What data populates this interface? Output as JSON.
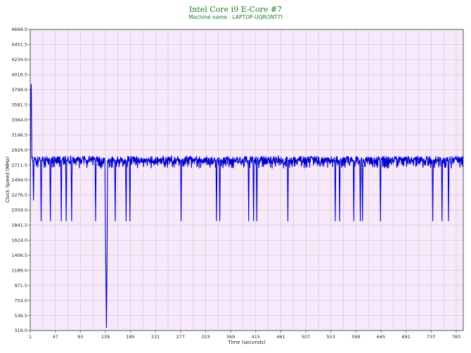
{
  "chart_data": {
    "type": "line",
    "title": "Intel Core i9 E-Core #7",
    "subtitle": "Machine name : LAPTOP-UQRONT7I",
    "xlabel": "Time (seconds)",
    "ylabel": "Clock Speed (MHz)",
    "xlim": [
      1,
      796
    ],
    "ylim": [
      319.0,
      4669.0
    ],
    "y_ticks": [
      "4669.0",
      "4451.5",
      "4234.0",
      "4016.5",
      "3799.0",
      "3581.5",
      "3364.0",
      "3146.5",
      "2929.0",
      "2711.5",
      "2494.0",
      "2276.5",
      "2059.0",
      "1841.5",
      "1624.0",
      "1406.5",
      "1189.0",
      "971.5",
      "754.0",
      "536.5",
      "319.0"
    ],
    "x_ticks": [
      "1",
      "47",
      "93",
      "139",
      "185",
      "231",
      "277",
      "323",
      "369",
      "415",
      "461",
      "507",
      "553",
      "599",
      "645",
      "691",
      "737",
      "783"
    ],
    "grid": true,
    "background": "#f7e8fb",
    "grid_color": "#c9c9c9",
    "series": [
      {
        "color": "#0000cc",
        "baseline": 2800,
        "points": [
          [
            1,
            1900
          ],
          [
            2,
            3700
          ],
          [
            3,
            3880
          ],
          [
            4,
            2800
          ],
          [
            6,
            2780
          ],
          [
            7,
            2200
          ],
          [
            8,
            2780
          ],
          [
            20,
            2780
          ],
          [
            21,
            1900
          ],
          [
            22,
            2780
          ],
          [
            37,
            2780
          ],
          [
            38,
            1900
          ],
          [
            39,
            2780
          ],
          [
            57,
            2780
          ],
          [
            58,
            1900
          ],
          [
            59,
            2780
          ],
          [
            66,
            2780
          ],
          [
            67,
            1900
          ],
          [
            68,
            2780
          ],
          [
            76,
            2780
          ],
          [
            77,
            1900
          ],
          [
            78,
            2780
          ],
          [
            120,
            2780
          ],
          [
            121,
            1900
          ],
          [
            122,
            2780
          ],
          [
            138,
            2780
          ],
          [
            139,
            1700
          ],
          [
            140,
            1150
          ],
          [
            141,
            360
          ],
          [
            142,
            1300
          ],
          [
            143,
            2780
          ],
          [
            156,
            2780
          ],
          [
            157,
            1900
          ],
          [
            158,
            2780
          ],
          [
            176,
            2780
          ],
          [
            177,
            1900
          ],
          [
            178,
            2780
          ],
          [
            183,
            2780
          ],
          [
            184,
            1900
          ],
          [
            185,
            2780
          ],
          [
            277,
            2780
          ],
          [
            278,
            1900
          ],
          [
            279,
            2780
          ],
          [
            342,
            2780
          ],
          [
            343,
            1900
          ],
          [
            344,
            2780
          ],
          [
            348,
            2780
          ],
          [
            349,
            1900
          ],
          [
            350,
            2780
          ],
          [
            401,
            2780
          ],
          [
            402,
            1900
          ],
          [
            403,
            2780
          ],
          [
            410,
            2780
          ],
          [
            411,
            1900
          ],
          [
            412,
            2780
          ],
          [
            416,
            2780
          ],
          [
            417,
            1900
          ],
          [
            418,
            2780
          ],
          [
            473,
            2780
          ],
          [
            474,
            1900
          ],
          [
            475,
            2780
          ],
          [
            560,
            2780
          ],
          [
            561,
            1900
          ],
          [
            562,
            2780
          ],
          [
            568,
            2780
          ],
          [
            569,
            1900
          ],
          [
            570,
            2780
          ],
          [
            594,
            2780
          ],
          [
            595,
            1900
          ],
          [
            596,
            2780
          ],
          [
            606,
            2780
          ],
          [
            607,
            1900
          ],
          [
            608,
            2780
          ],
          [
            610,
            2780
          ],
          [
            611,
            1900
          ],
          [
            612,
            2780
          ],
          [
            643,
            2780
          ],
          [
            644,
            1900
          ],
          [
            645,
            2780
          ],
          [
            739,
            2780
          ],
          [
            740,
            1900
          ],
          [
            741,
            2780
          ],
          [
            756,
            2780
          ],
          [
            757,
            1900
          ],
          [
            758,
            2780
          ],
          [
            768,
            2780
          ],
          [
            769,
            1900
          ],
          [
            770,
            2780
          ],
          [
            796,
            2780
          ]
        ]
      }
    ]
  }
}
